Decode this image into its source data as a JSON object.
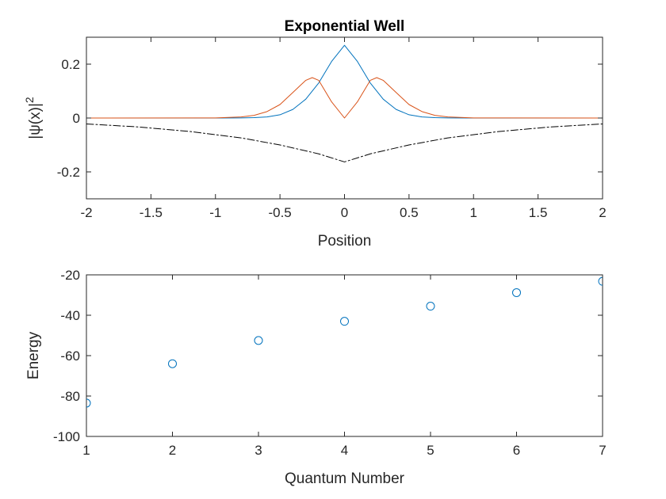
{
  "chart_data": [
    {
      "type": "line",
      "title": "Exponential Well",
      "xlabel": "Position",
      "ylabel": "|ψ(x)|",
      "ylabel_sup": "2",
      "xlim": [
        -2,
        2
      ],
      "ylim": [
        -0.3,
        0.3
      ],
      "xticks": [
        -2,
        -1.5,
        -1,
        -0.5,
        0,
        0.5,
        1,
        1.5,
        2
      ],
      "xtick_labels": [
        "-2",
        "-1.5",
        "-1",
        "-0.5",
        "0",
        "0.5",
        "1",
        "1.5",
        "2"
      ],
      "yticks": [
        -0.2,
        0,
        0.2
      ],
      "ytick_labels": [
        "-0.2",
        "0",
        "0.2"
      ],
      "grid": false,
      "series": [
        {
          "color": "#0072BD",
          "style": "solid",
          "x": [
            -2.0,
            -1.0,
            -0.8,
            -0.7,
            -0.6,
            -0.5,
            -0.4,
            -0.3,
            -0.2,
            -0.1,
            0.0,
            0.1,
            0.2,
            0.3,
            0.4,
            0.5,
            0.6,
            0.7,
            0.8,
            1.0,
            2.0
          ],
          "y": [
            0.0,
            0.0,
            0.0005,
            0.0015,
            0.004,
            0.012,
            0.032,
            0.07,
            0.13,
            0.21,
            0.27,
            0.21,
            0.13,
            0.07,
            0.032,
            0.012,
            0.004,
            0.0015,
            0.0005,
            0.0,
            0.0
          ]
        },
        {
          "color": "#D95319",
          "style": "solid",
          "x": [
            -2.0,
            -1.0,
            -0.8,
            -0.7,
            -0.6,
            -0.5,
            -0.4,
            -0.3,
            -0.25,
            -0.2,
            -0.1,
            0.0,
            0.1,
            0.2,
            0.25,
            0.3,
            0.4,
            0.5,
            0.6,
            0.7,
            0.8,
            1.0,
            2.0
          ],
          "y": [
            0.0,
            0.0005,
            0.004,
            0.01,
            0.024,
            0.05,
            0.095,
            0.14,
            0.15,
            0.14,
            0.06,
            0.0,
            0.06,
            0.14,
            0.15,
            0.14,
            0.095,
            0.05,
            0.024,
            0.01,
            0.004,
            0.0005,
            0.0
          ]
        },
        {
          "color": "#000000",
          "style": "dashdot",
          "x": [
            -2.0,
            -1.6,
            -1.2,
            -0.8,
            -0.5,
            -0.2,
            0.0,
            0.2,
            0.5,
            0.8,
            1.2,
            1.6,
            2.0
          ],
          "y": [
            -0.022,
            -0.033,
            -0.05,
            -0.074,
            -0.1,
            -0.133,
            -0.163,
            -0.133,
            -0.1,
            -0.074,
            -0.05,
            -0.033,
            -0.022
          ]
        }
      ]
    },
    {
      "type": "scatter",
      "title": "",
      "xlabel": "Quantum Number",
      "ylabel": "Energy",
      "xlim": [
        1,
        7
      ],
      "ylim": [
        -100,
        -20
      ],
      "xticks": [
        1,
        2,
        3,
        4,
        5,
        6,
        7
      ],
      "xtick_labels": [
        "1",
        "2",
        "3",
        "4",
        "5",
        "6",
        "7"
      ],
      "yticks": [
        -100,
        -80,
        -60,
        -40,
        -20
      ],
      "ytick_labels": [
        "-100",
        "-80",
        "-60",
        "-40",
        "-20"
      ],
      "grid": false,
      "series": [
        {
          "color": "#0072BD",
          "marker": "circle-open",
          "x": [
            1,
            2,
            3,
            4,
            5,
            6,
            7
          ],
          "y": [
            -83.5,
            -64,
            -52.5,
            -43,
            -35.5,
            -28.8,
            -23.2
          ]
        }
      ]
    }
  ]
}
